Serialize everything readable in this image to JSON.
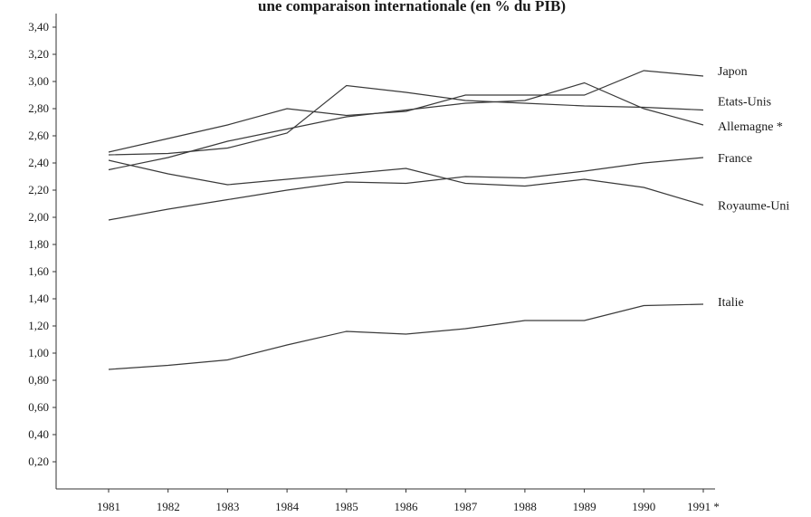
{
  "chart_data": {
    "type": "line",
    "title": "une comparaison internationale (en % du PIB)",
    "x": [
      "1981",
      "1982",
      "1983",
      "1984",
      "1985",
      "1986",
      "1987",
      "1988",
      "1989",
      "1990",
      "1991 *"
    ],
    "yticks": [
      "0,20",
      "0,40",
      "0,60",
      "0,80",
      "1,00",
      "1,20",
      "1,40",
      "1,60",
      "1,80",
      "2,00",
      "2,20",
      "2,40",
      "2,60",
      "2,80",
      "3,00",
      "3,20",
      "3,40"
    ],
    "ylim": [
      0,
      3.5
    ],
    "grid": false,
    "series": [
      {
        "name": "Japon",
        "values": [
          2.48,
          2.58,
          2.68,
          2.8,
          2.75,
          2.78,
          2.9,
          2.9,
          2.9,
          3.08,
          3.04
        ]
      },
      {
        "name": "Etats-Unis",
        "values": [
          2.46,
          2.47,
          2.51,
          2.62,
          2.97,
          2.92,
          2.86,
          2.84,
          2.82,
          2.81,
          2.79
        ]
      },
      {
        "name": "Allemagne *",
        "values": [
          2.35,
          2.44,
          2.56,
          2.65,
          2.74,
          2.79,
          2.84,
          2.86,
          2.99,
          2.8,
          2.68
        ]
      },
      {
        "name": "France",
        "values": [
          1.98,
          2.06,
          2.13,
          2.2,
          2.26,
          2.25,
          2.3,
          2.29,
          2.34,
          2.4,
          2.44
        ]
      },
      {
        "name": "Royaume-Uni",
        "values": [
          2.42,
          2.32,
          2.24,
          2.28,
          2.32,
          2.36,
          2.25,
          2.23,
          2.28,
          2.22,
          2.09
        ]
      },
      {
        "name": "Italie",
        "values": [
          0.88,
          0.91,
          0.95,
          1.06,
          1.16,
          1.14,
          1.18,
          1.24,
          1.24,
          1.35,
          1.36
        ]
      }
    ]
  }
}
